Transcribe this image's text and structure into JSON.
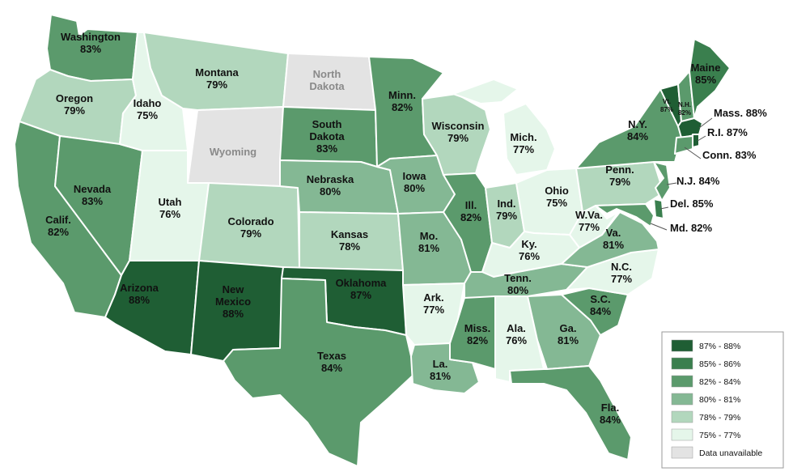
{
  "scale": [
    {
      "key": "c1",
      "range": "87% - 88%",
      "color": "#1f5e34"
    },
    {
      "key": "c2",
      "range": "85% - 86%",
      "color": "#3a7f4e"
    },
    {
      "key": "c3",
      "range": "82% - 84%",
      "color": "#5b9a6c"
    },
    {
      "key": "c4",
      "range": "80% - 81%",
      "color": "#84b894"
    },
    {
      "key": "c5",
      "range": "78% - 79%",
      "color": "#b2d7bd"
    },
    {
      "key": "c6",
      "range": "75% - 77%",
      "color": "#e5f6ea"
    },
    {
      "key": "na",
      "range": "Data unavailable",
      "color": "#e3e3e3"
    }
  ],
  "states": [
    {
      "id": "wa",
      "name": "Washington",
      "value": "83%",
      "cls": "c3"
    },
    {
      "id": "or",
      "name": "Oregon",
      "value": "79%",
      "cls": "c5"
    },
    {
      "id": "ca",
      "name": "Calif.",
      "value": "82%",
      "cls": "c3"
    },
    {
      "id": "nv",
      "name": "Nevada",
      "value": "83%",
      "cls": "c3"
    },
    {
      "id": "id",
      "name": "Idaho",
      "value": "75%",
      "cls": "c6"
    },
    {
      "id": "mt",
      "name": "Montana",
      "value": "79%",
      "cls": "c5"
    },
    {
      "id": "wy",
      "name": "Wyoming",
      "value": "",
      "cls": "na"
    },
    {
      "id": "ut",
      "name": "Utah",
      "value": "76%",
      "cls": "c6"
    },
    {
      "id": "az",
      "name": "Arizona",
      "value": "88%",
      "cls": "c1"
    },
    {
      "id": "co",
      "name": "Colorado",
      "value": "79%",
      "cls": "c5"
    },
    {
      "id": "nm",
      "name": "New Mexico",
      "value": "88%",
      "cls": "c1"
    },
    {
      "id": "nd",
      "name": "North Dakota",
      "value": "",
      "cls": "na"
    },
    {
      "id": "sd",
      "name": "South Dakota",
      "value": "83%",
      "cls": "c3"
    },
    {
      "id": "ne",
      "name": "Nebraska",
      "value": "80%",
      "cls": "c4"
    },
    {
      "id": "ks",
      "name": "Kansas",
      "value": "78%",
      "cls": "c5"
    },
    {
      "id": "ok",
      "name": "Oklahoma",
      "value": "87%",
      "cls": "c1"
    },
    {
      "id": "tx",
      "name": "Texas",
      "value": "84%",
      "cls": "c3"
    },
    {
      "id": "mn",
      "name": "Minn.",
      "value": "82%",
      "cls": "c3"
    },
    {
      "id": "ia",
      "name": "Iowa",
      "value": "80%",
      "cls": "c4"
    },
    {
      "id": "mo",
      "name": "Mo.",
      "value": "81%",
      "cls": "c4"
    },
    {
      "id": "ar",
      "name": "Ark.",
      "value": "77%",
      "cls": "c6"
    },
    {
      "id": "la",
      "name": "La.",
      "value": "81%",
      "cls": "c4"
    },
    {
      "id": "wi",
      "name": "Wisconsin",
      "value": "79%",
      "cls": "c5"
    },
    {
      "id": "il",
      "name": "Ill.",
      "value": "82%",
      "cls": "c3"
    },
    {
      "id": "mi",
      "name": "Mich.",
      "value": "77%",
      "cls": "c6"
    },
    {
      "id": "in",
      "name": "Ind.",
      "value": "79%",
      "cls": "c5"
    },
    {
      "id": "oh",
      "name": "Ohio",
      "value": "75%",
      "cls": "c6"
    },
    {
      "id": "ky",
      "name": "Ky.",
      "value": "76%",
      "cls": "c6"
    },
    {
      "id": "tn",
      "name": "Tenn.",
      "value": "80%",
      "cls": "c4"
    },
    {
      "id": "ms",
      "name": "Miss.",
      "value": "82%",
      "cls": "c3"
    },
    {
      "id": "al",
      "name": "Ala.",
      "value": "76%",
      "cls": "c6"
    },
    {
      "id": "ga",
      "name": "Ga.",
      "value": "81%",
      "cls": "c4"
    },
    {
      "id": "fl",
      "name": "Fla.",
      "value": "84%",
      "cls": "c3"
    },
    {
      "id": "sc",
      "name": "S.C.",
      "value": "84%",
      "cls": "c3"
    },
    {
      "id": "nc",
      "name": "N.C.",
      "value": "77%",
      "cls": "c6"
    },
    {
      "id": "va",
      "name": "Va.",
      "value": "81%",
      "cls": "c4"
    },
    {
      "id": "wv",
      "name": "W.Va.",
      "value": "77%",
      "cls": "c6"
    },
    {
      "id": "pa",
      "name": "Penn.",
      "value": "79%",
      "cls": "c5"
    },
    {
      "id": "ny",
      "name": "N.Y.",
      "value": "84%",
      "cls": "c3"
    },
    {
      "id": "vt",
      "name": "Vt.",
      "value": "87%",
      "cls": "c1"
    },
    {
      "id": "nh",
      "name": "N.H.",
      "value": "82%",
      "cls": "c3"
    },
    {
      "id": "me",
      "name": "Maine",
      "value": "85%",
      "cls": "c2"
    },
    {
      "id": "ma",
      "name": "Mass.",
      "value": "88%",
      "cls": "c1"
    },
    {
      "id": "ri",
      "name": "R.I.",
      "value": "87%",
      "cls": "c1"
    },
    {
      "id": "ct",
      "name": "Conn.",
      "value": "83%",
      "cls": "c3"
    },
    {
      "id": "nj",
      "name": "N.J.",
      "value": "84%",
      "cls": "c3"
    },
    {
      "id": "de",
      "name": "Del.",
      "value": "85%",
      "cls": "c2"
    },
    {
      "id": "md",
      "name": "Md.",
      "value": "82%",
      "cls": "c3"
    }
  ]
}
